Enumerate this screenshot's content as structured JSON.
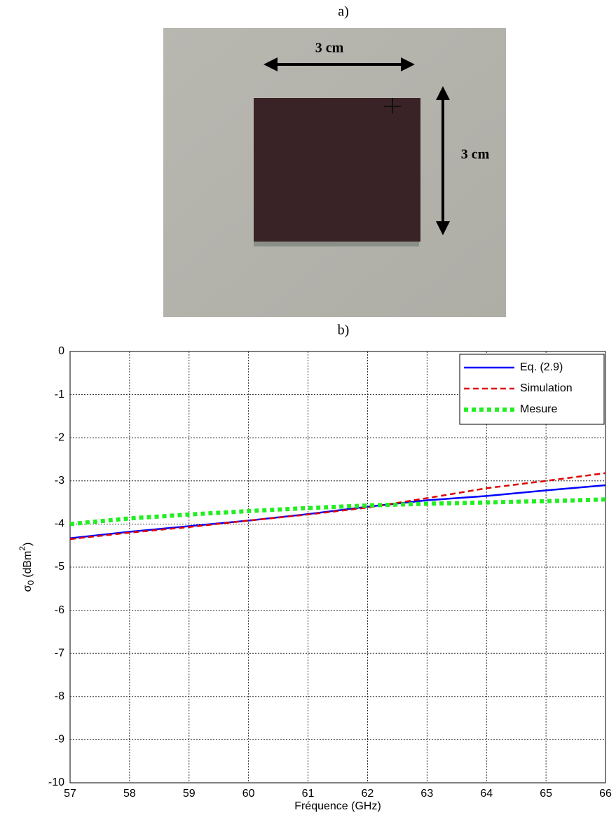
{
  "figure": {
    "label_a": "a)",
    "label_b": "b)",
    "photo": {
      "width_label": "3 cm",
      "height_label": "3 cm"
    }
  },
  "chart_data": {
    "type": "line",
    "x_label": "Fréquence (GHz)",
    "y_label": {
      "symbol": "σ",
      "subscript": "0",
      "unit": "(dBm",
      "superscript": "2",
      "close": ")"
    },
    "x": [
      57,
      58,
      59,
      60,
      61,
      62,
      63,
      64,
      65,
      66
    ],
    "series": [
      {
        "name": "Eq. (2.9)",
        "color": "#0000ff",
        "style": "solid",
        "values": [
          -4.33,
          -4.18,
          -4.05,
          -3.92,
          -3.77,
          -3.6,
          -3.45,
          -3.35,
          -3.22,
          -3.1
        ]
      },
      {
        "name": "Simulation",
        "color": "#e00000",
        "style": "dashed",
        "values": [
          -4.35,
          -4.2,
          -4.07,
          -3.92,
          -3.78,
          -3.62,
          -3.4,
          -3.17,
          -3.0,
          -2.82
        ]
      },
      {
        "name": "Mesure",
        "color": "#22ee22",
        "style": "dotted",
        "values": [
          -4.0,
          -3.87,
          -3.78,
          -3.7,
          -3.63,
          -3.57,
          -3.53,
          -3.5,
          -3.47,
          -3.43
        ]
      }
    ],
    "xlim": [
      57,
      66
    ],
    "xticks": [
      57,
      58,
      59,
      60,
      61,
      62,
      63,
      64,
      65,
      66
    ],
    "ylim": [
      -10,
      0
    ],
    "yticks": [
      -10,
      -9,
      -8,
      -7,
      -6,
      -5,
      -4,
      -3,
      -2,
      -1,
      0
    ],
    "grid": true,
    "legend": "upper right"
  }
}
